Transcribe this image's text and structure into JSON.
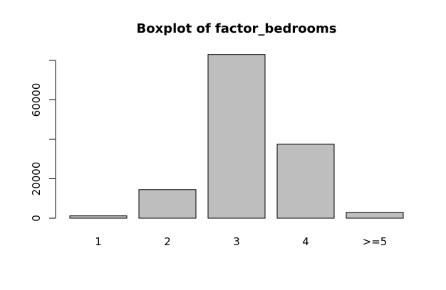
{
  "chart_data": {
    "type": "bar",
    "title": "Boxplot of factor_bedrooms",
    "xlabel": "",
    "ylabel": "",
    "categories": [
      "1",
      "2",
      "3",
      "4",
      ">=5"
    ],
    "values": [
      1200,
      14500,
      83000,
      37500,
      3000
    ],
    "ylim": [
      0,
      80000
    ],
    "yticks": [
      0,
      20000,
      40000,
      60000,
      80000
    ],
    "ytick_labels": [
      "0",
      "20000",
      "",
      "60000",
      ""
    ],
    "bar_color": "#bebebe",
    "grid": false,
    "legend": "none"
  }
}
